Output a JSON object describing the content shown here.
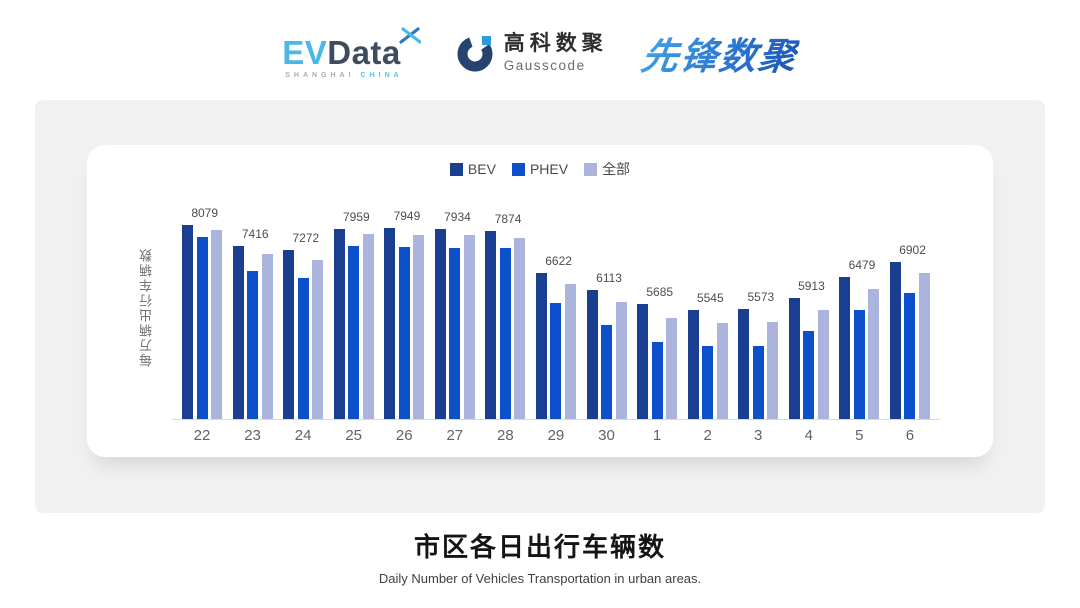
{
  "header": {
    "evdata": {
      "part1": "EV",
      "part2": "Data",
      "sub_left": "SHANGHAI",
      "sub_right": "CHINA"
    },
    "gausscode": {
      "name_cn": "高科数聚",
      "name_en": "Gausscode"
    },
    "xianfeng": {
      "name": "先锋数聚"
    }
  },
  "chart_data": {
    "type": "bar",
    "title": "市区各日出行车辆数",
    "subtitle": "Daily Number of Vehicles Transportation in urban areas.",
    "ylabel": "每万辆出行车辆数",
    "xlabel": "",
    "legend_position": "top",
    "grid": false,
    "value_labels_series": "全部",
    "ylim": [
      2940,
      9060
    ],
    "categories": [
      "22",
      "23",
      "24",
      "25",
      "26",
      "27",
      "28",
      "29",
      "30",
      "1",
      "2",
      "3",
      "4",
      "5",
      "6"
    ],
    "series": [
      {
        "name": "BEV",
        "color": "#1a3e90",
        "values": [
          8215,
          7650,
          7545,
          8115,
          8130,
          8115,
          8045,
          6910,
          6450,
          6060,
          5895,
          5930,
          6220,
          6790,
          7210
        ]
      },
      {
        "name": "PHEV",
        "color": "#0c4fca",
        "values": [
          7880,
          6970,
          6775,
          7635,
          7615,
          7600,
          7580,
          6085,
          5505,
          5025,
          4915,
          4930,
          5325,
          5905,
          6355
        ]
      },
      {
        "name": "全部",
        "color": "#abb4dc",
        "values": [
          8079,
          7416,
          7272,
          7959,
          7949,
          7934,
          7874,
          6622,
          6113,
          5685,
          5545,
          5573,
          5913,
          6479,
          6902
        ]
      }
    ]
  }
}
